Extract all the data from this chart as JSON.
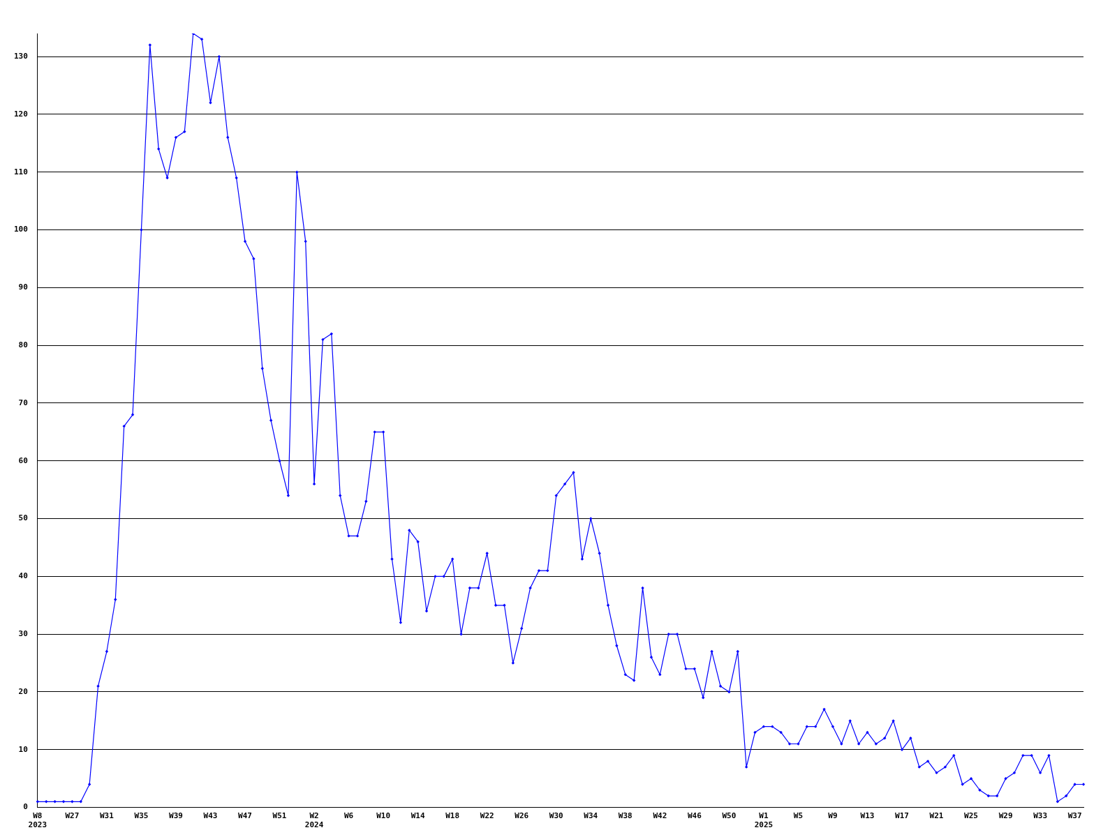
{
  "chart_data": {
    "type": "line",
    "categories": [
      "W8\n2023",
      null,
      null,
      null,
      "W27",
      null,
      null,
      null,
      "W31",
      null,
      null,
      null,
      "W35",
      null,
      null,
      null,
      "W39",
      null,
      null,
      null,
      "W43",
      null,
      null,
      null,
      "W47",
      null,
      null,
      null,
      "W51",
      null,
      null,
      null,
      "W2\n2024",
      null,
      null,
      null,
      "W6",
      null,
      null,
      null,
      "W10",
      null,
      null,
      null,
      "W14",
      null,
      null,
      null,
      "W18",
      null,
      null,
      null,
      "W22",
      null,
      null,
      null,
      "W26",
      null,
      null,
      null,
      "W30",
      null,
      null,
      null,
      "W34",
      null,
      null,
      null,
      "W38",
      null,
      null,
      null,
      "W42",
      null,
      null,
      null,
      "W46",
      null,
      null,
      null,
      "W50",
      null,
      null,
      null,
      "W1\n2025",
      null,
      null,
      null,
      "W5",
      null,
      null,
      null,
      "W9",
      null,
      null,
      null,
      "W13",
      null,
      null,
      null,
      "W17",
      null,
      null,
      null,
      "W21",
      null,
      null,
      null,
      "W25",
      null,
      null,
      null,
      "W29",
      null,
      null,
      null,
      "W33",
      null,
      null,
      null,
      "W37",
      null
    ],
    "series": [
      {
        "color": "#0000ff",
        "values": [
          1,
          1,
          1,
          1,
          1,
          1,
          4,
          21,
          27,
          36,
          66,
          68,
          100,
          132,
          114,
          109,
          116,
          117,
          134,
          133,
          122,
          130,
          116,
          109,
          98,
          95,
          76,
          67,
          60,
          54,
          110,
          98,
          56,
          81,
          82,
          54,
          47,
          47,
          53,
          65,
          65,
          43,
          32,
          48,
          46,
          34,
          40,
          40,
          43,
          30,
          38,
          38,
          44,
          35,
          35,
          25,
          31,
          38,
          41,
          41,
          54,
          56,
          58,
          43,
          50,
          44,
          35,
          28,
          23,
          22,
          38,
          26,
          23,
          30,
          30,
          24,
          24,
          19,
          27,
          21,
          20,
          27,
          7,
          13,
          14,
          14,
          13,
          11,
          11,
          14,
          14,
          17,
          14,
          11,
          15,
          11,
          13,
          11,
          12,
          15,
          10,
          12,
          7,
          8,
          6,
          7,
          9,
          4,
          5,
          3,
          2,
          2,
          5,
          6,
          9,
          9,
          6,
          9,
          1,
          2,
          4,
          4
        ]
      }
    ],
    "ylim": [
      0,
      134
    ],
    "yticks": [
      0,
      10,
      20,
      30,
      40,
      50,
      60,
      70,
      80,
      90,
      100,
      110,
      120,
      130
    ],
    "grid": "y",
    "legend": false,
    "marker": "diamond",
    "line_style": "solid"
  }
}
